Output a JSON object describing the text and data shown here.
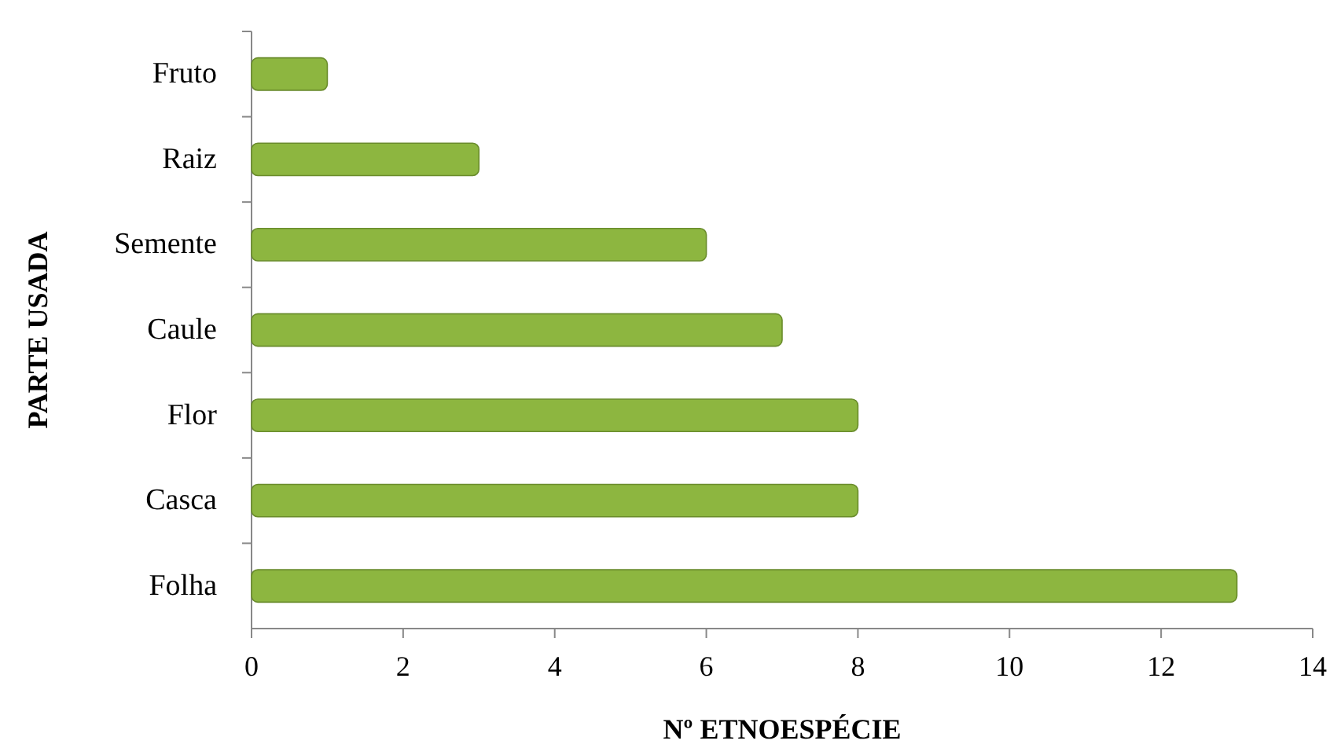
{
  "chart_data": {
    "type": "bar",
    "orientation": "horizontal",
    "xlabel": "Nº ETNOESPÉCIE",
    "ylabel": "PARTE USADA",
    "categories": [
      "Fruto",
      "Raiz",
      "Semente",
      "Caule",
      "Flor",
      "Casca",
      "Folha"
    ],
    "values": [
      1,
      3,
      6,
      7,
      8,
      8,
      13
    ],
    "color": "#8db640",
    "xlim": [
      0,
      14
    ],
    "xticks": [
      0,
      2,
      4,
      6,
      8,
      10,
      12,
      14
    ],
    "grid": false
  }
}
